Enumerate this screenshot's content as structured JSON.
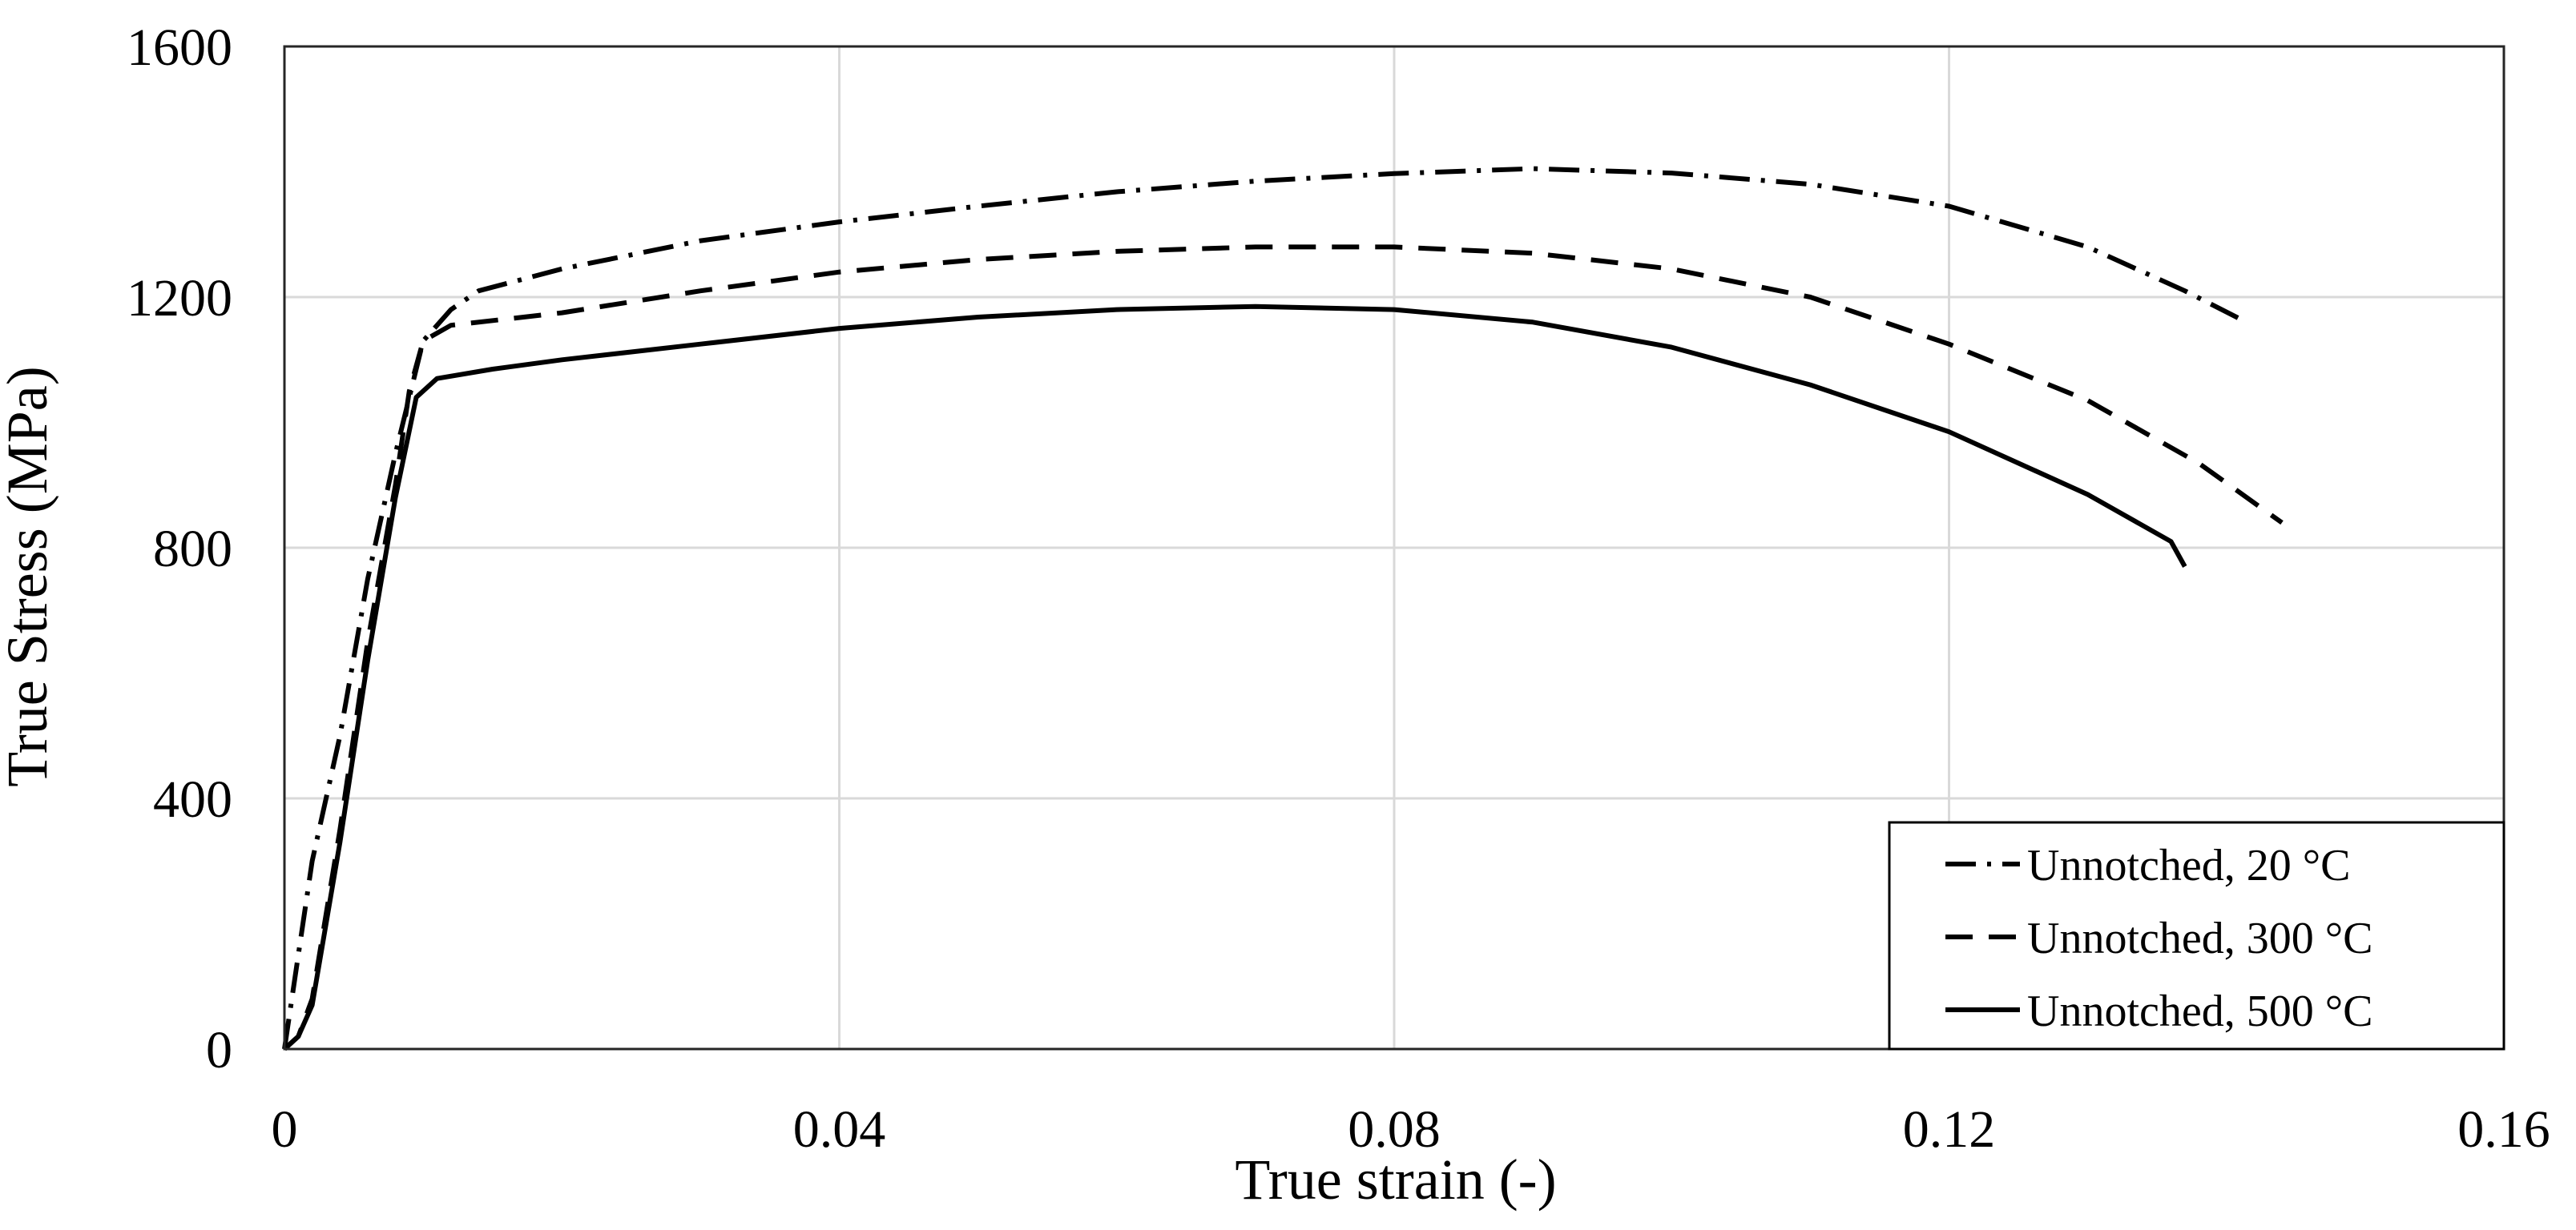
{
  "chart_data": {
    "type": "line",
    "title": "",
    "xlabel": "True strain (-)",
    "ylabel": "True Stress (MPa)",
    "xlim": [
      0,
      0.16
    ],
    "ylim": [
      0,
      1600
    ],
    "x_ticks": [
      0,
      0.04,
      0.08,
      0.12,
      0.16
    ],
    "x_tick_labels": [
      "0",
      "0.04",
      "0.08",
      "0.12",
      "0.16"
    ],
    "y_ticks": [
      0,
      400,
      800,
      1200,
      1600
    ],
    "y_tick_labels": [
      "0",
      "400",
      "800",
      "1200",
      "1600"
    ],
    "grid": true,
    "legend_position": "bottom-right",
    "series": [
      {
        "name": "Unnotched, 20 °C",
        "style": "dash-dot",
        "color": "#000000",
        "points": [
          [
            0,
            0
          ],
          [
            0.001,
            150
          ],
          [
            0.002,
            300
          ],
          [
            0.004,
            500
          ],
          [
            0.006,
            750
          ],
          [
            0.008,
            950
          ],
          [
            0.01,
            1130
          ],
          [
            0.012,
            1180
          ],
          [
            0.014,
            1210
          ],
          [
            0.02,
            1245
          ],
          [
            0.03,
            1290
          ],
          [
            0.04,
            1320
          ],
          [
            0.05,
            1345
          ],
          [
            0.06,
            1368
          ],
          [
            0.07,
            1385
          ],
          [
            0.08,
            1397
          ],
          [
            0.09,
            1405
          ],
          [
            0.1,
            1398
          ],
          [
            0.11,
            1380
          ],
          [
            0.12,
            1345
          ],
          [
            0.13,
            1280
          ],
          [
            0.137,
            1210
          ],
          [
            0.141,
            1165
          ]
        ]
      },
      {
        "name": "Unnotched, 300 °C",
        "style": "dash",
        "color": "#000000",
        "points": [
          [
            0,
            0
          ],
          [
            0.001,
            20
          ],
          [
            0.002,
            80
          ],
          [
            0.004,
            350
          ],
          [
            0.006,
            650
          ],
          [
            0.008,
            900
          ],
          [
            0.009,
            1050
          ],
          [
            0.01,
            1130
          ],
          [
            0.012,
            1155
          ],
          [
            0.02,
            1175
          ],
          [
            0.03,
            1210
          ],
          [
            0.04,
            1240
          ],
          [
            0.05,
            1260
          ],
          [
            0.06,
            1273
          ],
          [
            0.07,
            1280
          ],
          [
            0.08,
            1280
          ],
          [
            0.09,
            1270
          ],
          [
            0.1,
            1245
          ],
          [
            0.11,
            1200
          ],
          [
            0.12,
            1125
          ],
          [
            0.13,
            1035
          ],
          [
            0.138,
            935
          ],
          [
            0.144,
            840
          ]
        ]
      },
      {
        "name": "Unnotched, 500 °C",
        "style": "solid",
        "color": "#000000",
        "points": [
          [
            0,
            0
          ],
          [
            0.001,
            20
          ],
          [
            0.002,
            70
          ],
          [
            0.004,
            330
          ],
          [
            0.006,
            620
          ],
          [
            0.008,
            880
          ],
          [
            0.0095,
            1040
          ],
          [
            0.011,
            1070
          ],
          [
            0.015,
            1085
          ],
          [
            0.02,
            1100
          ],
          [
            0.03,
            1125
          ],
          [
            0.04,
            1150
          ],
          [
            0.05,
            1168
          ],
          [
            0.06,
            1180
          ],
          [
            0.07,
            1185
          ],
          [
            0.08,
            1180
          ],
          [
            0.09,
            1160
          ],
          [
            0.1,
            1120
          ],
          [
            0.11,
            1060
          ],
          [
            0.12,
            985
          ],
          [
            0.13,
            885
          ],
          [
            0.136,
            810
          ],
          [
            0.137,
            770
          ]
        ]
      }
    ]
  }
}
